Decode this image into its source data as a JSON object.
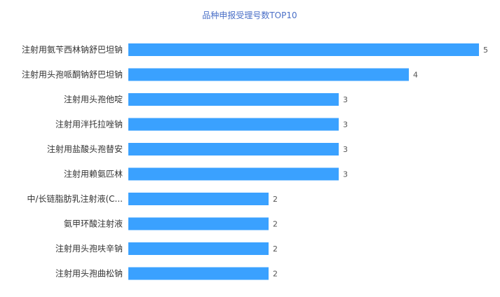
{
  "chart_data": {
    "type": "bar",
    "orientation": "horizontal",
    "title": "品种申报受理号数TOP10",
    "categories": [
      "注射用氨苄西林钠舒巴坦钠",
      "注射用头孢哌酮钠舒巴坦钠",
      "注射用头孢他啶",
      "注射用泮托拉唑钠",
      "注射用盐酸头孢替安",
      "注射用赖氨匹林",
      "中/长链脂肪乳注射液(C...",
      "氨甲环酸注射液",
      "注射用头孢呋辛钠",
      "注射用头孢曲松钠"
    ],
    "values": [
      5,
      4,
      3,
      3,
      3,
      3,
      2,
      2,
      2,
      2
    ],
    "xlim": [
      0,
      5
    ],
    "grid": false,
    "legend": "none",
    "colors": {
      "bar": "#3aa1ff",
      "title": "#4a6fc7",
      "label": "#333333",
      "value": "#555555"
    }
  }
}
